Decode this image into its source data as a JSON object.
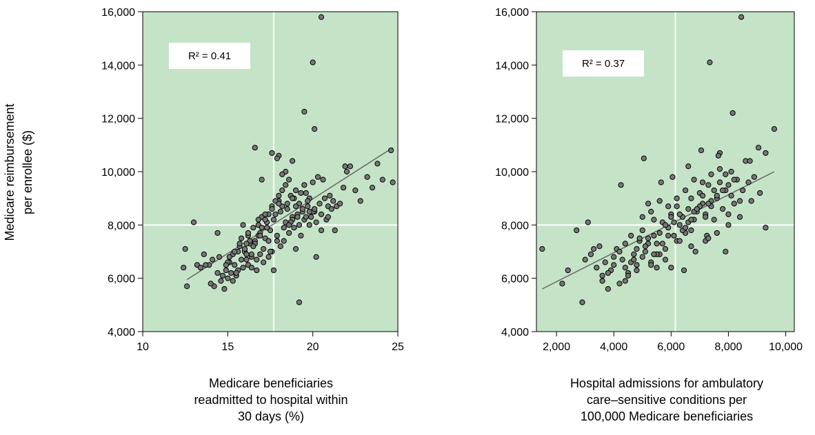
{
  "figure": {
    "shared_ylabel_lines": [
      "Medicare reimbursement",
      "per enrollee ($)"
    ]
  },
  "chart_data": [
    {
      "type": "scatter",
      "title": "",
      "xlabel_lines": [
        "Medicare beneficiaries",
        "readmitted to hospital within",
        "30 days (%)"
      ],
      "ylabel": "",
      "annotation": "R² = 0.41",
      "xlim": [
        10,
        25
      ],
      "ylim": [
        4000,
        16000
      ],
      "xticks": [
        10,
        15,
        20,
        25
      ],
      "xtick_labels": [
        "10",
        "15",
        "20",
        "25"
      ],
      "yticks": [
        4000,
        6000,
        8000,
        10000,
        12000,
        14000,
        16000
      ],
      "ytick_labels": [
        "4,000",
        "6,000",
        "8,000",
        "10,000",
        "12,000",
        "14,000",
        "16,000"
      ],
      "reference_lines": {
        "x": 17.7,
        "y": 8000
      },
      "trend_line": {
        "from": [
          12.6,
          5950
        ],
        "to": [
          24.7,
          10900
        ]
      },
      "series": [
        {
          "x": [
            12.4,
            12.5,
            12.6,
            13.0,
            13.2,
            13.4,
            13.6,
            13.9,
            14.1,
            14.2,
            14.4,
            14.5,
            14.6,
            14.7,
            14.9,
            15.0,
            15.1,
            15.2,
            15.3,
            15.4,
            15.5,
            15.6,
            15.7,
            15.8,
            15.9,
            16.0,
            16.1,
            16.2,
            16.3,
            16.4,
            16.5,
            16.6,
            16.7,
            16.8,
            16.9,
            17.0,
            17.1,
            17.2,
            17.3,
            17.4,
            17.5,
            17.6,
            17.7,
            17.8,
            17.9,
            18.0,
            18.1,
            18.2,
            18.3,
            18.4,
            18.5,
            18.6,
            18.7,
            18.8,
            18.9,
            19.0,
            19.1,
            19.2,
            19.3,
            19.4,
            19.5,
            19.6,
            19.7,
            19.8,
            19.9,
            20.0,
            20.1,
            20.2,
            20.3,
            20.4,
            20.5,
            20.6,
            20.7,
            20.8,
            20.9,
            21.0,
            21.1,
            21.2,
            21.4,
            21.6,
            21.8,
            22.0,
            22.2,
            22.5,
            22.8,
            23.2,
            23.5,
            23.8,
            24.1,
            24.6,
            24.7,
            14.0,
            14.8,
            15.3,
            15.5,
            15.8,
            16.0,
            16.2,
            16.4,
            16.6,
            16.8,
            17.0,
            17.2,
            17.4,
            17.6,
            17.8,
            18.0,
            18.2,
            18.4,
            18.6,
            18.8,
            19.0,
            19.2,
            19.4,
            19.6,
            19.8,
            20.0,
            20.2,
            15.0,
            15.6,
            16.1,
            16.5,
            16.9,
            17.3,
            17.7,
            18.1,
            18.5,
            18.9,
            19.3,
            19.7,
            20.1,
            20.5,
            16.3,
            16.7,
            17.1,
            17.5,
            17.9,
            18.3,
            18.7,
            19.1,
            19.5,
            17.0,
            17.6,
            18.0,
            18.4,
            18.8,
            19.2,
            16.6,
            20.0,
            20.1,
            19.5,
            20.5,
            21.9,
            17.9,
            18.2,
            18.8,
            19.8,
            20.9,
            21.3,
            15.9,
            16.1,
            16.4,
            16.9,
            17.4,
            18.6,
            19.0,
            14.4,
            14.9,
            15.1,
            15.7,
            16.2,
            16.8,
            17.2,
            17.6,
            18.0,
            13.7,
            15.4
          ],
          "y": [
            6400,
            7100,
            5700,
            8100,
            6500,
            6400,
            6900,
            6500,
            6700,
            5700,
            7700,
            6800,
            5900,
            6100,
            6300,
            6000,
            6600,
            6200,
            6900,
            6500,
            6100,
            6300,
            7200,
            7500,
            6400,
            7000,
            6700,
            7600,
            7300,
            6800,
            7900,
            7400,
            6300,
            8000,
            7700,
            8300,
            7100,
            7500,
            8100,
            6800,
            7800,
            7000,
            6300,
            8400,
            7600,
            8900,
            7200,
            8700,
            7400,
            8100,
            8600,
            7700,
            9100,
            8300,
            7900,
            9300,
            8400,
            8800,
            7600,
            8500,
            8200,
            9200,
            8700,
            9000,
            8300,
            9600,
            8500,
            8100,
            9800,
            8800,
            8400,
            9700,
            9000,
            8200,
            8700,
            9100,
            8600,
            8900,
            8700,
            8800,
            9400,
            10000,
            10200,
            9300,
            8900,
            9800,
            9400,
            10300,
            9700,
            10800,
            9600,
            5800,
            5600,
            5900,
            6200,
            6700,
            7100,
            6500,
            6900,
            7300,
            7600,
            7900,
            8200,
            8400,
            8700,
            8900,
            9100,
            9300,
            9500,
            9700,
            8200,
            8700,
            8000,
            8600,
            8300,
            8000,
            8500,
            6800,
            6600,
            7000,
            6900,
            7200,
            7600,
            7900,
            8200,
            8500,
            8800,
            9000,
            9200,
            8900,
            8600,
            7800,
            7400,
            6700,
            6600,
            7000,
            7400,
            7900,
            8100,
            8300,
            9500,
            9700,
            10700,
            10600,
            10000,
            10400,
            5100,
            10900,
            14100,
            11600,
            12250,
            15800,
            10200,
            10500,
            9900,
            9000,
            8500,
            8300,
            7800,
            8000,
            7300,
            6400,
            6900,
            7400,
            8000,
            7100,
            6200,
            6500,
            6800,
            7300,
            7700,
            8200,
            8400,
            8600,
            8800,
            6500,
            7000
          ]
        }
      ]
    },
    {
      "type": "scatter",
      "title": "",
      "xlabel_lines": [
        "Hospital admissions for ambulatory",
        "care–sensitive conditions per",
        "100,000 Medicare beneficiaries"
      ],
      "ylabel": "",
      "annotation": "R² = 0.37",
      "xlim": [
        1300,
        10300
      ],
      "ylim": [
        4000,
        16000
      ],
      "xticks": [
        2000,
        4000,
        6000,
        8000,
        10000
      ],
      "xtick_labels": [
        "2,000",
        "4,000",
        "6,000",
        "8,000",
        "10,000"
      ],
      "yticks": [
        4000,
        6000,
        8000,
        10000,
        12000,
        14000,
        16000
      ],
      "ytick_labels": [
        "4,000",
        "6,000",
        "8,000",
        "10,000",
        "12,000",
        "14,000",
        "16,000"
      ],
      "reference_lines": {
        "x": 6150,
        "y": 8000
      },
      "trend_line": {
        "from": [
          1500,
          5600
        ],
        "to": [
          9600,
          10000
        ]
      },
      "series": [
        {
          "x": [
            1500,
            2200,
            2400,
            2700,
            2900,
            3100,
            3200,
            3400,
            3500,
            3600,
            3700,
            3800,
            3900,
            4000,
            4100,
            4200,
            4300,
            4400,
            4500,
            4600,
            4700,
            4800,
            4900,
            5000,
            5100,
            5200,
            5300,
            5400,
            5500,
            5600,
            5700,
            5800,
            5900,
            6000,
            6100,
            6200,
            6300,
            6400,
            6500,
            6600,
            6700,
            6800,
            6900,
            7000,
            7100,
            7200,
            7300,
            7400,
            7500,
            7600,
            7700,
            7800,
            7900,
            8000,
            8100,
            8200,
            8300,
            8400,
            8500,
            8600,
            8700,
            8800,
            8900,
            9100,
            9300,
            9600,
            3600,
            3800,
            4000,
            4200,
            4400,
            4600,
            4800,
            5000,
            5200,
            5400,
            5600,
            5800,
            6000,
            6200,
            6400,
            6600,
            6800,
            7000,
            7200,
            7400,
            7600,
            7800,
            8000,
            8200,
            4500,
            4700,
            4900,
            5100,
            5300,
            5500,
            5700,
            5900,
            6100,
            6300,
            6500,
            6700,
            6900,
            7100,
            7300,
            7500,
            7700,
            7900,
            8100,
            5000,
            5300,
            5600,
            5900,
            6200,
            6500,
            6800,
            7100,
            7400,
            7700,
            5500,
            5800,
            6300,
            6700,
            7200,
            7600,
            8000,
            8400,
            3000,
            3300,
            4250,
            5050,
            6600,
            7050,
            7350,
            7650,
            8150,
            8450,
            8750,
            9050,
            9300,
            5200,
            5650,
            6050,
            6450,
            6850,
            7250,
            4400,
            4800,
            5400,
            6000,
            6700,
            7300,
            7900
          ],
          "y": [
            7100,
            5800,
            6300,
            7800,
            5100,
            8100,
            6900,
            6400,
            7200,
            6100,
            6600,
            5600,
            6300,
            6800,
            7100,
            5800,
            6700,
            7300,
            6200,
            7600,
            6900,
            6500,
            7400,
            7800,
            7000,
            7500,
            6600,
            8200,
            7300,
            7700,
            8100,
            7100,
            7900,
            8400,
            7600,
            8700,
            8000,
            8300,
            7700,
            8600,
            9000,
            8200,
            8500,
            9200,
            8800,
            8400,
            9500,
            8700,
            8200,
            9000,
            10700,
            8600,
            9300,
            8400,
            9100,
            8800,
            9700,
            8900,
            9300,
            10400,
            9600,
            8900,
            9800,
            9200,
            10700,
            11600,
            5900,
            6200,
            6500,
            7000,
            6400,
            6600,
            7100,
            6800,
            7300,
            7600,
            6900,
            8000,
            8300,
            7400,
            7800,
            8100,
            8500,
            8700,
            8300,
            8900,
            9100,
            9300,
            9500,
            9700,
            6100,
            6700,
            7500,
            7200,
            6500,
            6900,
            7300,
            7600,
            8100,
            8400,
            7900,
            8200,
            8600,
            9100,
            8800,
            9300,
            9600,
            9900,
            10000,
            8300,
            8500,
            8900,
            8700,
            9000,
            9300,
            9700,
            9600,
            9900,
            10100,
            6400,
            6700,
            7400,
            7800,
            7400,
            7700,
            8000,
            8300,
            6700,
            7100,
            9500,
            10500,
            10200,
            10800,
            14100,
            10600,
            12200,
            15800,
            10400,
            10900,
            7900,
            8800,
            9600,
            9800,
            6300,
            7000,
            7600,
            5900,
            6300,
            6900,
            6400,
            7200,
            7500,
            7000
          ]
        }
      ]
    }
  ]
}
